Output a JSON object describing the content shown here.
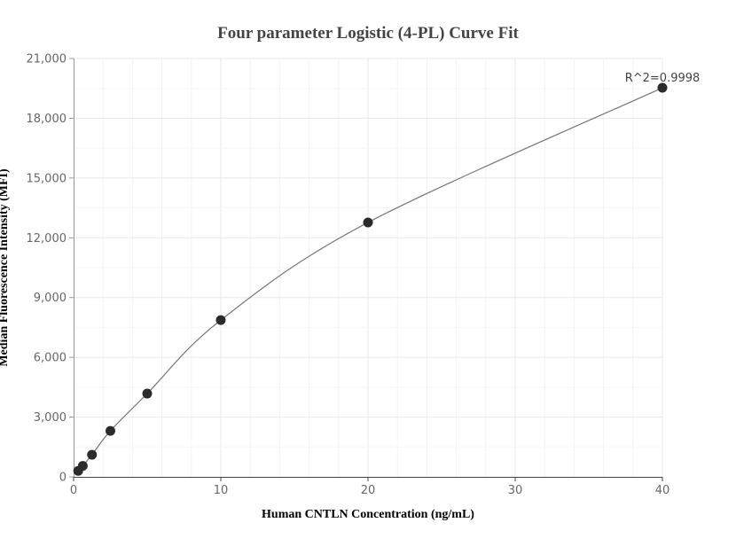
{
  "chart_data": {
    "type": "scatter",
    "title": "Four parameter Logistic (4-PL) Curve Fit",
    "xlabel": "Human CNTLN Concentration (ng/mL)",
    "ylabel": "Median Fluorescence Intensity (MFI)",
    "xlim": [
      0,
      40
    ],
    "ylim": [
      0,
      21000
    ],
    "xticks": [
      0,
      10,
      20,
      30,
      40
    ],
    "xtick_labels": [
      "0",
      "10",
      "20",
      "30",
      "40"
    ],
    "yticks": [
      0,
      3000,
      6000,
      9000,
      12000,
      15000,
      18000,
      21000
    ],
    "ytick_labels": [
      "0",
      "3,000",
      "6,000",
      "9,000",
      "12,000",
      "15,000",
      "18,000",
      "21,000"
    ],
    "grid": true,
    "points": {
      "x": [
        0.3125,
        0.625,
        1.25,
        2.5,
        5,
        10,
        20,
        40
      ],
      "y": [
        300,
        550,
        1110,
        2310,
        4180,
        7870,
        12770,
        19530
      ]
    },
    "fit_curve": "4-PL",
    "annotation": "R^2=0.9998",
    "colors": {
      "points": "#2b2b2b",
      "curve": "#777777",
      "grid": "#eceef3"
    }
  }
}
